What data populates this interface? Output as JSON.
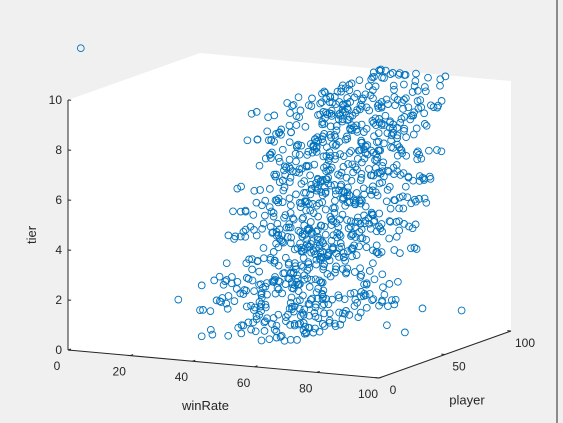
{
  "window": {
    "background_color": "#f0f0f0",
    "axes_background_color": "#ffffff",
    "border_color": "#cfcfcf"
  },
  "chart_data": {
    "type": "scatter3",
    "title": "",
    "xlabel": "winRate",
    "ylabel": "player",
    "zlabel": "tier",
    "xlim": [
      0,
      100
    ],
    "ylim": [
      0,
      100
    ],
    "zlim": [
      0,
      10
    ],
    "x_ticks": [
      "0",
      "20",
      "40",
      "60",
      "80",
      "100"
    ],
    "y_ticks": [
      "0",
      "50",
      "100"
    ],
    "z_ticks": [
      "0",
      "2",
      "4",
      "6",
      "8",
      "10"
    ],
    "grid": false,
    "marker": "circle-open",
    "marker_color": "#0072BD",
    "distribution": {
      "points_total": 1000,
      "tier_levels": [
        1,
        2,
        3,
        4,
        5,
        6,
        7,
        8,
        9,
        10
      ],
      "points_per_tier": 100,
      "player_range": [
        1,
        100
      ],
      "winRate_range_by_tier": {
        "1": [
          40,
          70
        ],
        "2": [
          38,
          72
        ],
        "3": [
          40,
          72
        ],
        "4": [
          45,
          75
        ],
        "5": [
          48,
          76
        ],
        "6": [
          50,
          78
        ],
        "7": [
          52,
          80
        ],
        "8": [
          54,
          82
        ],
        "9": [
          55,
          84
        ],
        "10": [
          57,
          86
        ]
      }
    },
    "outliers": [
      {
        "winRate": 2,
        "player": 5,
        "tier": 12
      },
      {
        "winRate": 38,
        "player": 100,
        "tier": 1.0
      },
      {
        "winRate": 10,
        "player": 60,
        "tier": 1.0
      },
      {
        "winRate": 100,
        "player": 6,
        "tier": 2.0
      },
      {
        "winRate": 97,
        "player": 40,
        "tier": 2.0
      },
      {
        "winRate": 99,
        "player": 22,
        "tier": 1.4
      },
      {
        "winRate": 96,
        "player": 72,
        "tier": 1.3
      }
    ]
  }
}
